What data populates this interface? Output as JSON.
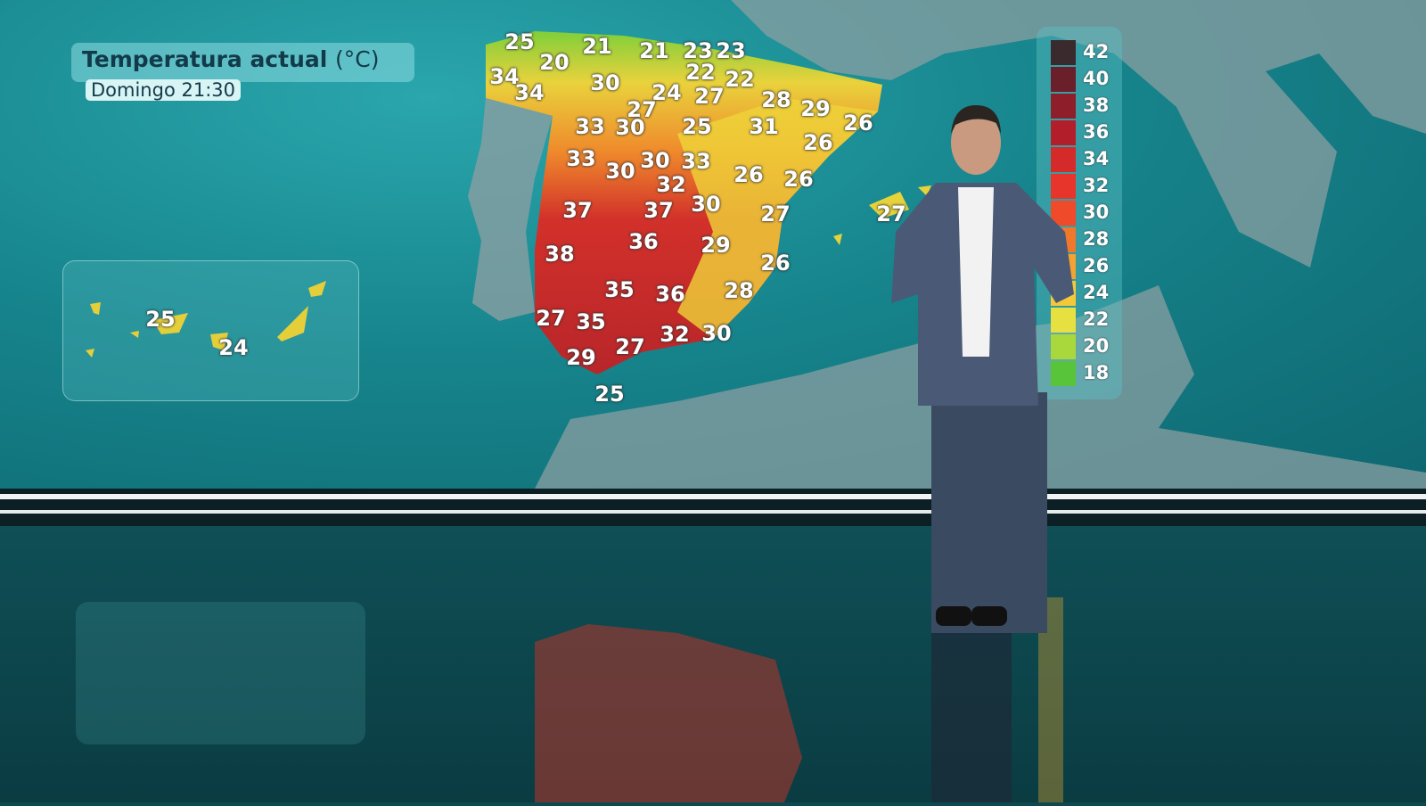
{
  "overlay": {
    "title": "Temperatura actual",
    "unit": "(°C)",
    "subtitle": "Domingo 21:30"
  },
  "map": {
    "labels": [
      "25",
      "21",
      "21",
      "23",
      "23",
      "20",
      "22",
      "22",
      "34",
      "34",
      "30",
      "24",
      "27",
      "28",
      "29",
      "26",
      "27",
      "33",
      "30",
      "25",
      "31",
      "26",
      "33",
      "30",
      "30",
      "33",
      "32",
      "26",
      "26",
      "37",
      "37",
      "30",
      "27",
      "38",
      "36",
      "29",
      "26",
      "35",
      "36",
      "28",
      "27",
      "35",
      "32",
      "30",
      "29",
      "27",
      "25",
      "27"
    ]
  },
  "canarias": {
    "labels": [
      "25",
      "24"
    ]
  },
  "legend": {
    "items": [
      {
        "value": "42",
        "color": "#3a2a2e"
      },
      {
        "value": "40",
        "color": "#6a1f2a"
      },
      {
        "value": "38",
        "color": "#8e1e2a"
      },
      {
        "value": "36",
        "color": "#b21f2a"
      },
      {
        "value": "34",
        "color": "#d42a2a"
      },
      {
        "value": "32",
        "color": "#e8352b"
      },
      {
        "value": "30",
        "color": "#ef4a2a"
      },
      {
        "value": "28",
        "color": "#f0782a"
      },
      {
        "value": "26",
        "color": "#f4a232"
      },
      {
        "value": "24",
        "color": "#f5c83a"
      },
      {
        "value": "22",
        "color": "#e6e040"
      },
      {
        "value": "20",
        "color": "#a8d83c"
      },
      {
        "value": "18",
        "color": "#58c43a"
      }
    ]
  }
}
